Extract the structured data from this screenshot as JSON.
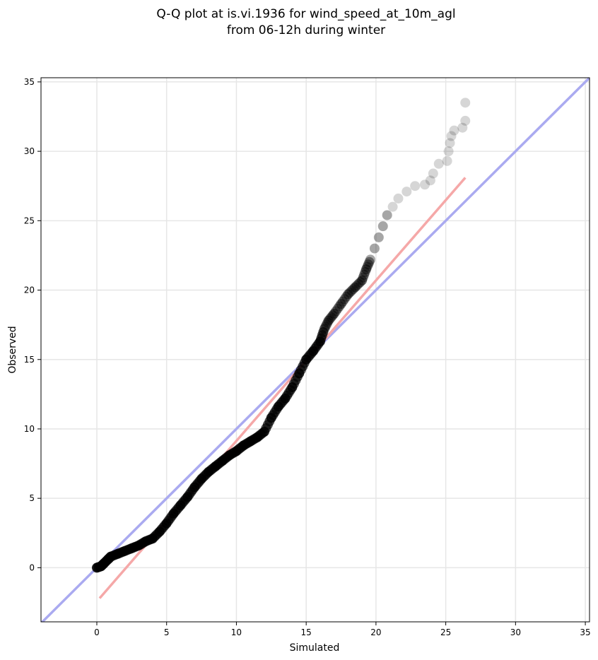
{
  "chart_data": {
    "type": "scatter",
    "title_line1": "Q-Q plot at is.vi.1936 for wind_speed_at_10m_agl",
    "title_line2": "from 06-12h during winter",
    "xlabel": "Simulated",
    "ylabel": "Observed",
    "xlim": [
      -4,
      35.3
    ],
    "ylim": [
      -3.9,
      35.3
    ],
    "x_ticks": [
      0,
      5,
      10,
      15,
      20,
      25,
      30,
      35
    ],
    "y_ticks": [
      0,
      5,
      10,
      15,
      20,
      25,
      30,
      35
    ],
    "grid": true,
    "colors": {
      "points": "#000000",
      "identity_line": "#aaaaf0",
      "fit_line": "#f5a8a8"
    },
    "identity_line": [
      [
        -4,
        -4
      ],
      [
        35.3,
        35.3
      ]
    ],
    "fit_line": [
      [
        0.2,
        -2.2
      ],
      [
        26.4,
        28.1
      ]
    ],
    "series": [
      {
        "points": [
          [
            0.0,
            0.0
          ],
          [
            0.3,
            0.1
          ],
          [
            0.5,
            0.3
          ],
          [
            0.8,
            0.6
          ],
          [
            1.0,
            0.8
          ],
          [
            1.5,
            1.0
          ],
          [
            2.0,
            1.2
          ],
          [
            2.5,
            1.4
          ],
          [
            3.0,
            1.6
          ],
          [
            3.5,
            1.9
          ],
          [
            4.0,
            2.1
          ],
          [
            4.5,
            2.6
          ],
          [
            5.0,
            3.2
          ],
          [
            5.5,
            3.9
          ],
          [
            6.0,
            4.5
          ],
          [
            6.5,
            5.1
          ],
          [
            7.0,
            5.8
          ],
          [
            7.5,
            6.4
          ],
          [
            8.0,
            6.9
          ],
          [
            8.5,
            7.3
          ],
          [
            9.0,
            7.7
          ],
          [
            9.5,
            8.1
          ],
          [
            10.0,
            8.4
          ],
          [
            10.5,
            8.8
          ],
          [
            11.0,
            9.1
          ],
          [
            11.5,
            9.4
          ],
          [
            12.0,
            9.8
          ],
          [
            12.5,
            10.8
          ],
          [
            13.0,
            11.6
          ],
          [
            13.5,
            12.2
          ],
          [
            14.0,
            13.0
          ],
          [
            14.5,
            14.0
          ],
          [
            15.0,
            15.0
          ],
          [
            15.5,
            15.6
          ],
          [
            16.0,
            16.3
          ],
          [
            16.3,
            17.2
          ],
          [
            16.6,
            17.8
          ],
          [
            17.0,
            18.3
          ],
          [
            17.5,
            19.0
          ],
          [
            18.0,
            19.7
          ],
          [
            18.5,
            20.2
          ],
          [
            19.0,
            20.7
          ],
          [
            19.3,
            21.5
          ],
          [
            19.6,
            22.2
          ],
          [
            19.9,
            23.0
          ],
          [
            20.2,
            23.8
          ],
          [
            20.5,
            24.6
          ],
          [
            20.8,
            25.4
          ],
          [
            21.2,
            26.0
          ],
          [
            21.6,
            26.6
          ],
          [
            22.2,
            27.1
          ],
          [
            22.8,
            27.5
          ],
          [
            23.5,
            27.6
          ],
          [
            23.9,
            27.9
          ],
          [
            24.1,
            28.4
          ],
          [
            24.5,
            29.1
          ],
          [
            25.1,
            29.3
          ],
          [
            25.2,
            30.0
          ],
          [
            25.3,
            30.6
          ],
          [
            25.4,
            31.1
          ],
          [
            25.6,
            31.5
          ],
          [
            26.2,
            31.7
          ],
          [
            26.4,
            32.2
          ],
          [
            26.4,
            33.5
          ]
        ]
      }
    ]
  }
}
